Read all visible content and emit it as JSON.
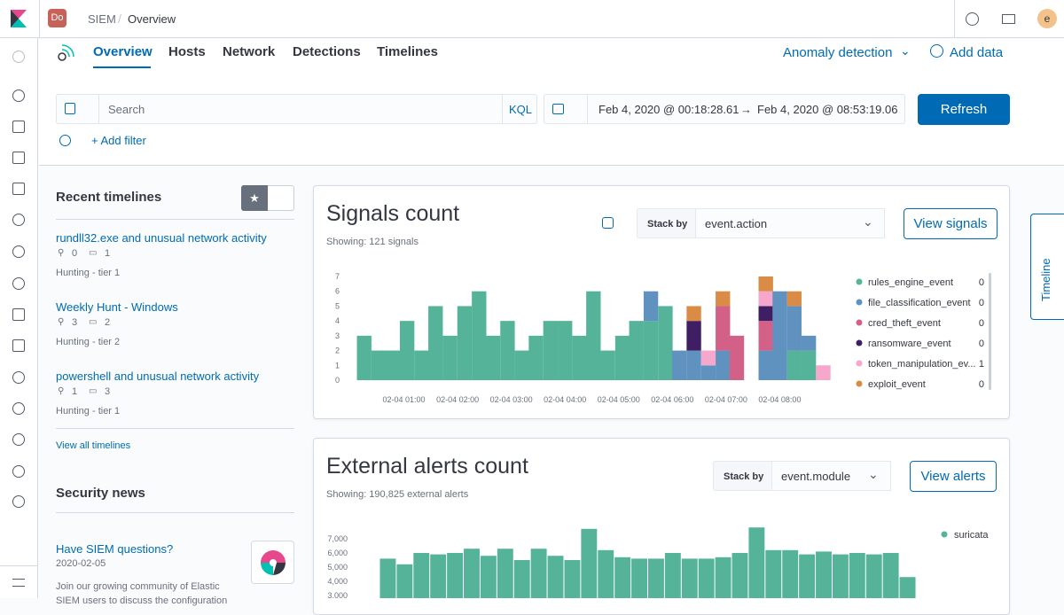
{
  "header": {
    "avatar": "Do",
    "breadcrumb": [
      "SIEM",
      "Overview"
    ],
    "user": "e"
  },
  "tabs": [
    "Overview",
    "Hosts",
    "Network",
    "Detections",
    "Timelines"
  ],
  "actions": [
    "Anomaly detection",
    "Add data"
  ],
  "query": {
    "placeholder": "Search",
    "language": "KQL",
    "start": "Feb 4, 2020 @ 00:18:28.61",
    "arrow": "→",
    "end": "Feb 4, 2020 @ 08:53:19.06",
    "refresh": "Refresh",
    "add_filter": "+ Add filter"
  },
  "recent_timelines": {
    "title": "Recent timelines",
    "items": [
      {
        "title": "rundll32.exe and unusual network activity",
        "pins": 0,
        "notes": 1,
        "description": "Hunting - tier 1"
      },
      {
        "title": "Weekly Hunt - Windows",
        "pins": 3,
        "notes": 2,
        "description": "Hunting - tier 2"
      },
      {
        "title": "powershell and unusual network activity",
        "pins": 1,
        "notes": 3,
        "description": "Hunting - tier 1"
      }
    ],
    "view_all": "View all timelines"
  },
  "security_news": {
    "title": "Security news",
    "item_title": "Have SIEM questions?",
    "date": "2020-02-05",
    "text": "Join our growing community of Elastic SIEM users to discuss the configuration"
  },
  "timeline_tab": "Timeline",
  "chart_data": [
    {
      "type": "stacked-bar",
      "title": "Signals count",
      "subtitle": "Showing: 121 signals",
      "stack_label": "Stack by",
      "stack_field": "event.action",
      "button": "View signals",
      "x": [
        0.26,
        0.53,
        0.79,
        1.06,
        1.33,
        1.59,
        1.86,
        2.13,
        2.4,
        2.66,
        2.93,
        3.2,
        3.46,
        3.73,
        4.0,
        4.27,
        4.53,
        4.8,
        5.07,
        5.33,
        5.6,
        5.87,
        6.13,
        6.4,
        6.67,
        6.94,
        7.2,
        7.47,
        7.74,
        8.0,
        8.27,
        8.54,
        8.81
      ],
      "xlim": [
        0.05,
        9.0
      ],
      "xticks": [
        {
          "value": 1,
          "label": "02-04 01:00"
        },
        {
          "value": 2,
          "label": "02-04 02:00"
        },
        {
          "value": 3,
          "label": "02-04 03:00"
        },
        {
          "value": 4,
          "label": "02-04 04:00"
        },
        {
          "value": 5,
          "label": "02-04 05:00"
        },
        {
          "value": 6,
          "label": "02-04 06:00"
        },
        {
          "value": 7,
          "label": "02-04 07:00"
        },
        {
          "value": 8,
          "label": "02-04 08:00"
        }
      ],
      "ylim": [
        0,
        7
      ],
      "yticks": [
        0,
        1,
        2,
        3,
        4,
        5,
        6,
        7
      ],
      "series": [
        {
          "name": "rules_engine_event",
          "color": "#54b399",
          "count": 0,
          "values": [
            3,
            2,
            2,
            4,
            2,
            5,
            3,
            5,
            6,
            3,
            4,
            2,
            3,
            4,
            4,
            3,
            6,
            2,
            3,
            4,
            4,
            5,
            0,
            0,
            0,
            0,
            0,
            0,
            0,
            0,
            2,
            2,
            0
          ]
        },
        {
          "name": "file_classification_event",
          "color": "#6092c0",
          "count": 0,
          "values": [
            0,
            0,
            0,
            0,
            0,
            0,
            0,
            0,
            0,
            0,
            0,
            0,
            0,
            0,
            0,
            0,
            0,
            0,
            0,
            0,
            2,
            0,
            2,
            2,
            1,
            2,
            0,
            0,
            2,
            6,
            3,
            1,
            0
          ]
        },
        {
          "name": "cred_theft_event",
          "color": "#d36086",
          "count": 0,
          "values": [
            0,
            0,
            0,
            0,
            0,
            0,
            0,
            0,
            0,
            0,
            0,
            0,
            0,
            0,
            0,
            0,
            0,
            0,
            0,
            0,
            0,
            0,
            0,
            0,
            0,
            3,
            3,
            0,
            2,
            0,
            0,
            0,
            0
          ]
        },
        {
          "name": "ransomware_event",
          "color": "#3f1e63",
          "count": 0,
          "values": [
            0,
            0,
            0,
            0,
            0,
            0,
            0,
            0,
            0,
            0,
            0,
            0,
            0,
            0,
            0,
            0,
            0,
            0,
            0,
            0,
            0,
            0,
            0,
            2,
            0,
            0,
            0,
            0,
            1,
            0,
            0,
            0,
            0
          ]
        },
        {
          "name": "token_manipulation_ev...",
          "color": "#f5a7cc",
          "count": 1,
          "values": [
            0,
            0,
            0,
            0,
            0,
            0,
            0,
            0,
            0,
            0,
            0,
            0,
            0,
            0,
            0,
            0,
            0,
            0,
            0,
            0,
            0,
            0,
            0,
            0,
            1,
            0,
            0,
            0,
            1,
            0,
            0,
            0,
            1
          ]
        },
        {
          "name": "exploit_event",
          "color": "#da8b45",
          "count": 0,
          "values": [
            0,
            0,
            0,
            0,
            0,
            0,
            0,
            0,
            0,
            0,
            0,
            0,
            0,
            0,
            0,
            0,
            0,
            0,
            0,
            0,
            0,
            0,
            0,
            1,
            0,
            1,
            0,
            0,
            1,
            0,
            1,
            0,
            0
          ]
        }
      ]
    },
    {
      "type": "bar",
      "title": "External alerts count",
      "subtitle": "Showing: 190,825 external alerts",
      "stack_label": "Stack by",
      "stack_field": "event.module",
      "button": "View alerts",
      "categories": [
        null,
        null,
        null,
        null,
        null,
        null,
        null,
        null,
        null,
        null,
        null,
        null,
        null,
        null,
        null,
        null,
        null,
        null,
        null,
        null,
        null,
        null,
        null,
        null,
        null,
        null,
        null,
        null,
        null,
        null,
        null,
        null
      ],
      "ylim": [
        2800,
        8000
      ],
      "yticks": [
        {
          "value": 3000,
          "label": "3,000"
        },
        {
          "value": 4000,
          "label": "4,000"
        },
        {
          "value": 5000,
          "label": "5,000"
        },
        {
          "value": 6000,
          "label": "6,000"
        },
        {
          "value": 7000,
          "label": "7,000"
        }
      ],
      "series": [
        {
          "name": "suricata",
          "color": "#54b399",
          "values": [
            5600,
            5200,
            6000,
            5900,
            6000,
            6300,
            5800,
            6300,
            5500,
            6300,
            5800,
            5500,
            7700,
            6200,
            5700,
            5600,
            5600,
            6000,
            5600,
            5600,
            5700,
            6000,
            7800,
            6200,
            6200,
            5900,
            6100,
            5900,
            6000,
            5900,
            6000,
            4300
          ]
        }
      ]
    }
  ]
}
